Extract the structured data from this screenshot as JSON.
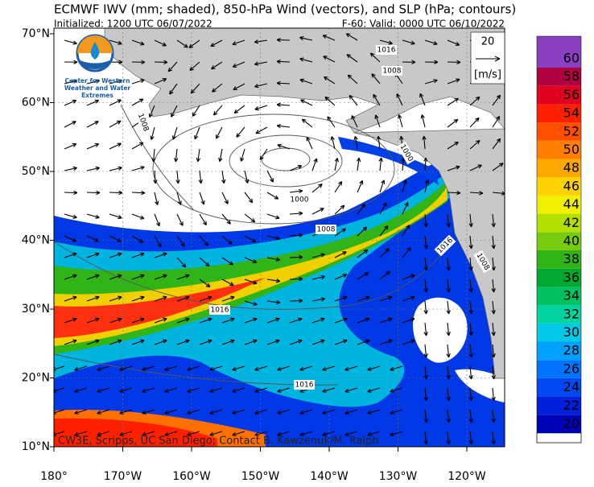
{
  "header": {
    "title": "ECMWF IWV (mm; shaded), 850-hPa Wind (vectors), and SLP (hPa; contours)",
    "initialized": "Initialized: 1200 UTC 06/07/2022",
    "valid": "F-60: Valid: 0000 UTC 06/10/2022"
  },
  "logo": {
    "text": "Center for Western Weather and Water Extremes"
  },
  "map": {
    "lat_labels": [
      "70°N",
      "60°N",
      "50°N",
      "40°N",
      "30°N",
      "20°N",
      "10°N"
    ],
    "lon_labels": [
      "180°",
      "170°W",
      "160°W",
      "150°W",
      "140°W",
      "130°W",
      "120°W"
    ],
    "contour_labels": [
      "1016",
      "1008",
      "1008",
      "1000",
      "1000",
      "1008",
      "1016",
      "1008",
      "1016",
      "1016"
    ],
    "credit": "CW3E, Scripps, UC San Diego; Contact B. Kawzenuk/M. Ralph",
    "vector_key": {
      "speed": "20",
      "unit": "[m/s]"
    }
  },
  "colorbar": {
    "levels": [
      20,
      22,
      24,
      26,
      28,
      30,
      32,
      34,
      36,
      38,
      40,
      42,
      44,
      46,
      48,
      50,
      52,
      54,
      56,
      58,
      60
    ],
    "colors": [
      "#0000b4",
      "#0020dc",
      "#0048f0",
      "#0074ff",
      "#00a0ff",
      "#00c8e6",
      "#00d2a0",
      "#00c060",
      "#00a830",
      "#30b418",
      "#78cc10",
      "#b4e000",
      "#f0f000",
      "#ffd200",
      "#ffa800",
      "#ff8000",
      "#ff5000",
      "#ff2000",
      "#e00020",
      "#b00040",
      "#800060"
    ],
    "under_color": "#ffffff",
    "over_color": "#8a40c0"
  }
}
